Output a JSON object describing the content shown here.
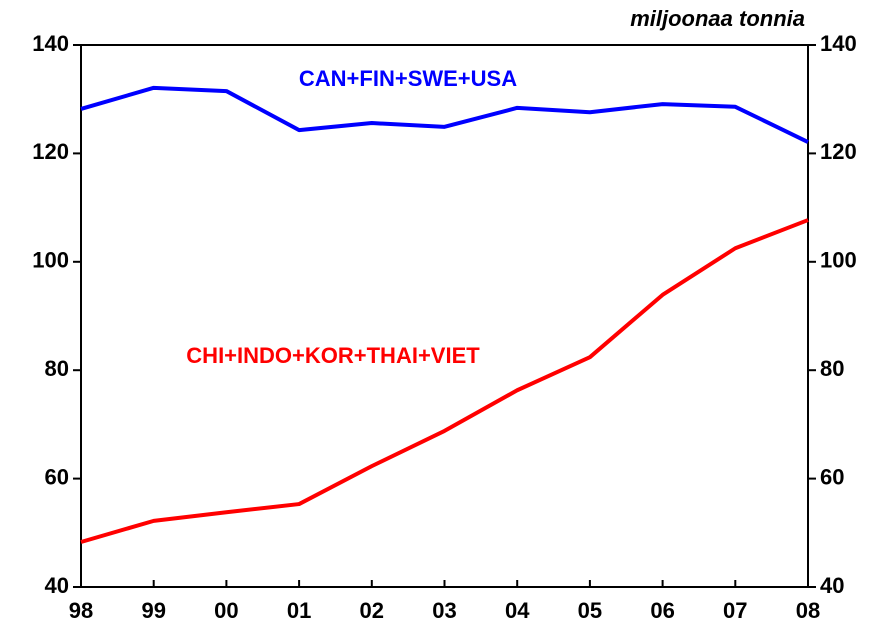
{
  "chart_data": {
    "type": "line",
    "unit_label": "miljoonaa tonnia",
    "categories": [
      "98",
      "99",
      "00",
      "01",
      "02",
      "03",
      "04",
      "05",
      "06",
      "07",
      "08"
    ],
    "series": [
      {
        "name": "CAN+FIN+SWE+USA",
        "color": "#0000ff",
        "values": [
          128.2,
          132.1,
          131.5,
          124.3,
          125.6,
          124.9,
          128.4,
          127.6,
          129.1,
          128.6,
          122.1
        ]
      },
      {
        "name": "CHI+INDO+KOR+THAI+VIET",
        "color": "#ff0000",
        "values": [
          48.3,
          52.2,
          53.8,
          55.3,
          62.3,
          68.8,
          76.3,
          82.4,
          93.9,
          102.5,
          107.7
        ]
      }
    ],
    "ylim": [
      40,
      140
    ],
    "yticks": [
      40,
      60,
      80,
      100,
      120,
      140
    ],
    "y2lim": [
      40,
      140
    ],
    "y2ticks": [
      40,
      60,
      80,
      100,
      120,
      140
    ]
  }
}
